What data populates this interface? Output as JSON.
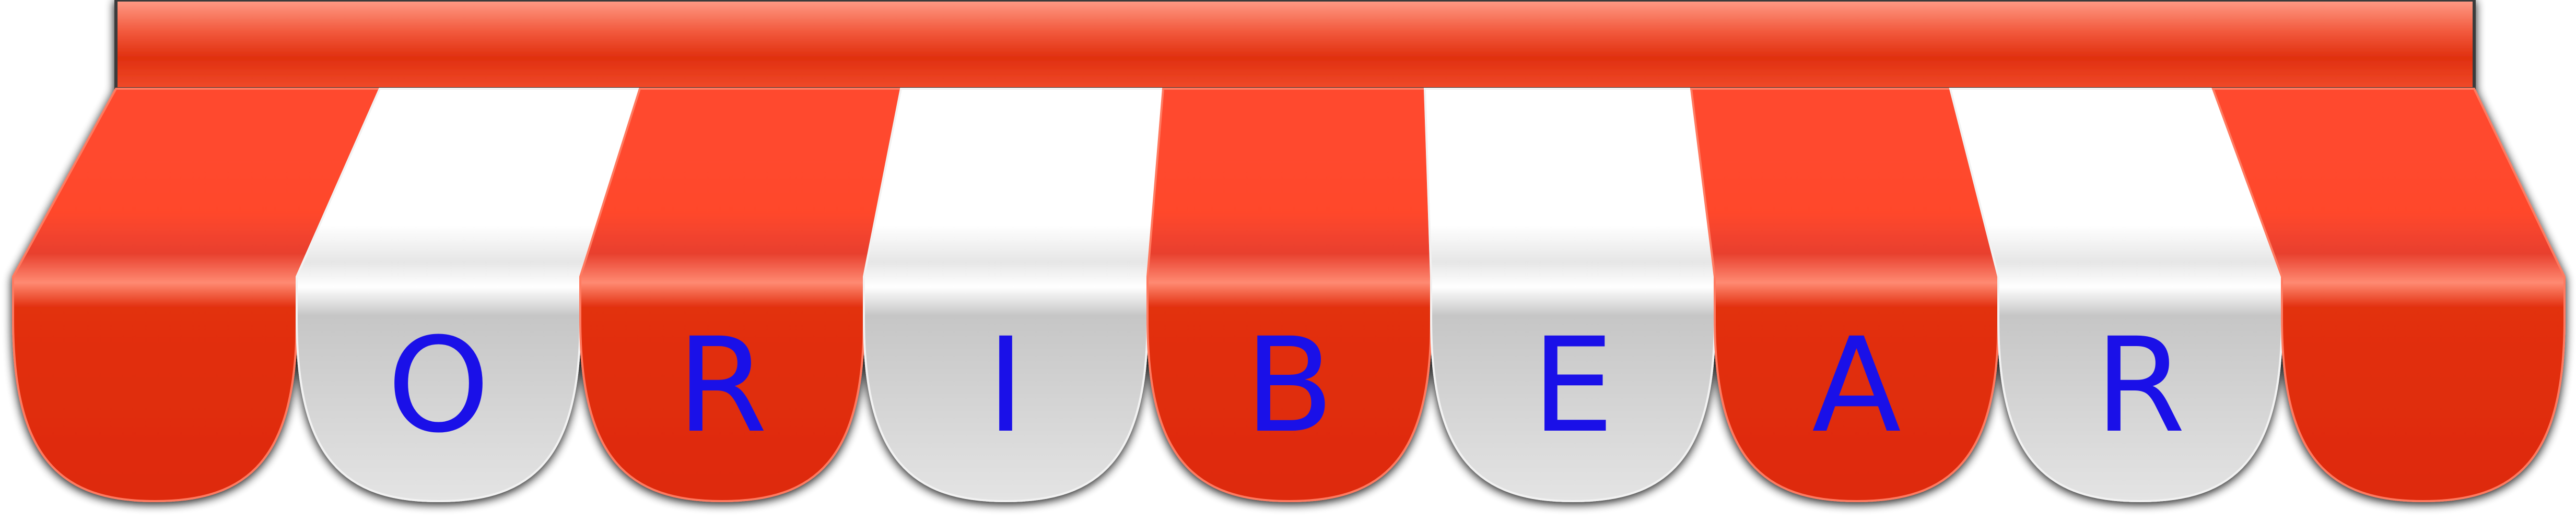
{
  "awning": {
    "stripe_colors": [
      "red",
      "white"
    ],
    "letters": [
      "",
      "O",
      "R",
      "I",
      "B",
      "E",
      "A",
      "R",
      ""
    ]
  },
  "colors": {
    "red_top": "#ff4a2e",
    "red_mid": "#e8341a",
    "red_bottom": "#d82a10",
    "red_highlight": "#ff8a70",
    "white_top": "#ffffff",
    "white_mid": "#c4c4c4",
    "white_bottom": "#e2e2e2",
    "letter": "#1a10e8",
    "shadow": "#2a2a2a",
    "valance_top": "#ff8872",
    "valance_mid": "#e02e12"
  }
}
